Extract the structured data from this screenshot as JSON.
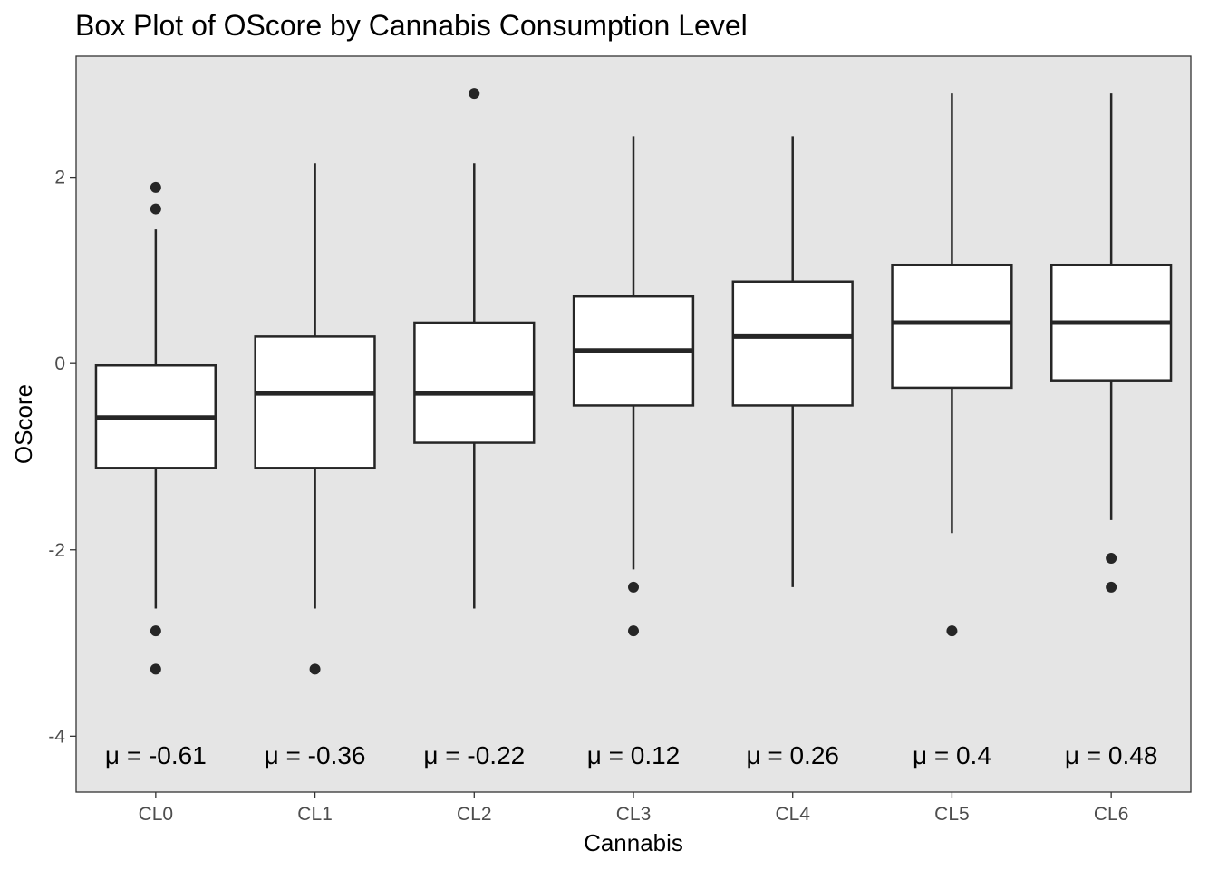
{
  "chart_data": {
    "type": "boxplot",
    "title": "Box Plot of OScore by Cannabis Consumption Level",
    "xlabel": "Cannabis",
    "ylabel": "OScore",
    "ylim": [
      -4.6,
      3.3
    ],
    "yticks": [
      -4,
      -2,
      0,
      2
    ],
    "ytick_labels": [
      "-4",
      "-2",
      "0",
      "2"
    ],
    "grid": false,
    "colors": {
      "panel": "#e5e5e5",
      "box_fill": "#ffffff",
      "line": "#262626",
      "tick_text": "#4d4d4d"
    },
    "categories": [
      "CL0",
      "CL1",
      "CL2",
      "CL3",
      "CL4",
      "CL5",
      "CL6"
    ],
    "boxes": [
      {
        "category": "CL0",
        "whisker_low": -2.63,
        "q1": -1.12,
        "median": -0.58,
        "q3": -0.02,
        "whisker_high": 1.44,
        "outliers": [
          1.89,
          1.66,
          -2.87,
          -3.28
        ]
      },
      {
        "category": "CL1",
        "whisker_low": -2.63,
        "q1": -1.12,
        "median": -0.32,
        "q3": 0.29,
        "whisker_high": 2.15,
        "outliers": [
          -3.28
        ]
      },
      {
        "category": "CL2",
        "whisker_low": -2.63,
        "q1": -0.85,
        "median": -0.32,
        "q3": 0.44,
        "whisker_high": 2.15,
        "outliers": [
          2.9
        ]
      },
      {
        "category": "CL3",
        "whisker_low": -2.21,
        "q1": -0.45,
        "median": 0.14,
        "q3": 0.72,
        "whisker_high": 2.44,
        "outliers": [
          -2.4,
          -2.87
        ]
      },
      {
        "category": "CL4",
        "whisker_low": -2.4,
        "q1": -0.45,
        "median": 0.29,
        "q3": 0.88,
        "whisker_high": 2.44,
        "outliers": []
      },
      {
        "category": "CL5",
        "whisker_low": -1.82,
        "q1": -0.26,
        "median": 0.44,
        "q3": 1.06,
        "whisker_high": 2.9,
        "outliers": [
          -2.87
        ]
      },
      {
        "category": "CL6",
        "whisker_low": -1.68,
        "q1": -0.18,
        "median": 0.44,
        "q3": 1.06,
        "whisker_high": 2.9,
        "outliers": [
          -2.09,
          -2.4
        ]
      }
    ],
    "annotations": [
      "μ = -0.61",
      "μ = -0.36",
      "μ = -0.22",
      "μ = 0.12",
      "μ = 0.26",
      "μ = 0.4",
      "μ = 0.48"
    ],
    "annotation_y": -4.2
  }
}
